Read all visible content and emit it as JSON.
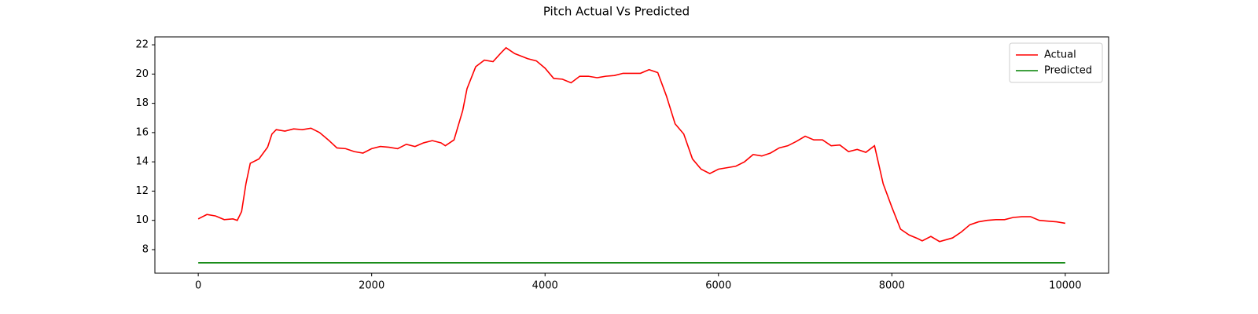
{
  "chart_data": {
    "type": "line",
    "title": "Pitch Actual Vs Predicted",
    "xlim": [
      -500,
      10500
    ],
    "xticks": [
      0,
      2000,
      4000,
      6000,
      8000,
      10000
    ],
    "ylim": [
      6.39,
      22.54
    ],
    "yticks": [
      8,
      10,
      12,
      14,
      16,
      18,
      20,
      22
    ],
    "grid": false,
    "legend": "upper right",
    "series": [
      {
        "name": "Actual",
        "color": "#ff0000",
        "x": [
          0,
          100,
          200,
          300,
          400,
          450,
          500,
          550,
          600,
          700,
          800,
          850,
          900,
          1000,
          1100,
          1200,
          1300,
          1400,
          1500,
          1600,
          1700,
          1800,
          1900,
          2000,
          2100,
          2200,
          2300,
          2400,
          2500,
          2600,
          2700,
          2800,
          2850,
          2950,
          3050,
          3100,
          3200,
          3300,
          3400,
          3500,
          3550,
          3650,
          3800,
          3900,
          4000,
          4100,
          4200,
          4300,
          4400,
          4500,
          4600,
          4700,
          4800,
          4900,
          5000,
          5100,
          5200,
          5300,
          5400,
          5500,
          5600,
          5700,
          5800,
          5900,
          6000,
          6100,
          6200,
          6300,
          6400,
          6500,
          6600,
          6700,
          6800,
          6900,
          7000,
          7100,
          7200,
          7300,
          7400,
          7500,
          7600,
          7700,
          7800,
          7900,
          8000,
          8100,
          8200,
          8300,
          8350,
          8450,
          8550,
          8700,
          8800,
          8900,
          9000,
          9100,
          9200,
          9300,
          9400,
          9500,
          9600,
          9700,
          9800,
          9900,
          10000
        ],
        "values": [
          10.1,
          10.4,
          10.3,
          10.05,
          10.1,
          10.0,
          10.6,
          12.5,
          13.9,
          14.2,
          15.0,
          15.9,
          16.2,
          16.1,
          16.25,
          16.2,
          16.3,
          16.0,
          15.5,
          14.95,
          14.9,
          14.7,
          14.6,
          14.9,
          15.05,
          15.0,
          14.9,
          15.2,
          15.05,
          15.3,
          15.45,
          15.3,
          15.1,
          15.5,
          17.5,
          19.0,
          20.5,
          20.95,
          20.85,
          21.5,
          21.8,
          21.4,
          21.05,
          20.9,
          20.4,
          19.7,
          19.65,
          19.4,
          19.85,
          19.85,
          19.75,
          19.85,
          19.9,
          20.05,
          20.05,
          20.05,
          20.3,
          20.1,
          18.5,
          16.6,
          15.9,
          14.2,
          13.5,
          13.2,
          13.5,
          13.6,
          13.7,
          14.0,
          14.5,
          14.4,
          14.6,
          14.95,
          15.1,
          15.4,
          15.75,
          15.5,
          15.5,
          15.1,
          15.15,
          14.7,
          14.85,
          14.65,
          15.1,
          12.5,
          10.9,
          9.4,
          9.0,
          8.75,
          8.6,
          8.9,
          8.55,
          8.8,
          9.2,
          9.7,
          9.9,
          10.0,
          10.05,
          10.05,
          10.2,
          10.25,
          10.25,
          10.0,
          9.95,
          9.9,
          9.8
        ]
      },
      {
        "name": "Predicted",
        "color": "#008000",
        "x": [
          0,
          10000
        ],
        "values": [
          7.1,
          7.1
        ]
      }
    ]
  }
}
